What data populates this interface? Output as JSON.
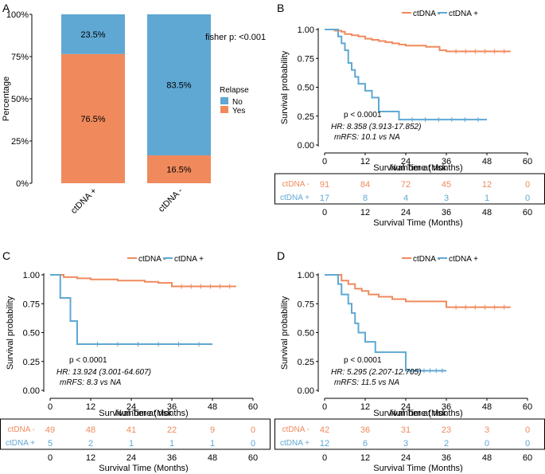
{
  "colors": {
    "no": "#5FA8D3",
    "yes": "#F08A5D",
    "neg": "#F08A5D",
    "pos": "#5FA8D3",
    "axis": "#000000"
  },
  "panelA": {
    "letter": "A",
    "ylabel": "Percentage",
    "yticks": [
      "0%",
      "25%",
      "50%",
      "75%",
      "100%"
    ],
    "categories": [
      "ctDNA +",
      "ctDNA -"
    ],
    "fisher": "fisher p: <0.001",
    "legend": {
      "title": "Relapse",
      "no": "No",
      "yes": "Yes"
    },
    "chart_data": {
      "type": "bar",
      "stacked": true,
      "categories": [
        "ctDNA +",
        "ctDNA -"
      ],
      "series": [
        {
          "name": "Yes",
          "values": [
            76.5,
            16.5
          ],
          "labels": [
            "76.5%",
            "16.5%"
          ]
        },
        {
          "name": "No",
          "values": [
            23.5,
            83.5
          ],
          "labels": [
            "23.5%",
            "83.5%"
          ]
        }
      ],
      "ylim": [
        0,
        100
      ]
    }
  },
  "km": [
    {
      "letter": "B",
      "legend": {
        "neg": "ctDNA -",
        "pos": "ctDNA +"
      },
      "ylabel": "Survival probability",
      "xlabel": "Survival Time (Months)",
      "risk_title": "Number at risk",
      "risk_xlabel": "Survival Time (Months)",
      "stats": {
        "p": "p < 0.0001",
        "hr": "HR: 8.358 (3.913-17.852)",
        "mrfs": "mRFS: 10.1 vs NA"
      },
      "yticks": [
        "0.00",
        "0.25",
        "0.50",
        "0.75",
        "1.00"
      ],
      "xticks": [
        "0",
        "12",
        "24",
        "36",
        "48",
        "60"
      ],
      "risk": {
        "labels": [
          "ctDNA -",
          "ctDNA +"
        ],
        "neg": [
          "91",
          "84",
          "72",
          "45",
          "12",
          "0"
        ],
        "pos": [
          "17",
          "8",
          "4",
          "3",
          "1",
          "0"
        ]
      },
      "chart_data": {
        "type": "line",
        "step": true,
        "xlim": [
          0,
          60
        ],
        "ylim": [
          0,
          1
        ],
        "series": [
          {
            "name": "ctDNA -",
            "x": [
              0,
              3,
              5,
              6,
              8,
              10,
              12,
              14,
              16,
              18,
              20,
              22,
              24,
              30,
              34,
              36,
              55
            ],
            "y": [
              1,
              0.99,
              0.98,
              0.96,
              0.95,
              0.94,
              0.92,
              0.91,
              0.9,
              0.89,
              0.88,
              0.87,
              0.86,
              0.85,
              0.82,
              0.81,
              0.81
            ]
          },
          {
            "name": "ctDNA +",
            "x": [
              0,
              4,
              5,
              6,
              7,
              8,
              9,
              10,
              12,
              14,
              16,
              22,
              48
            ],
            "y": [
              1,
              0.94,
              0.88,
              0.82,
              0.71,
              0.65,
              0.59,
              0.53,
              0.47,
              0.41,
              0.29,
              0.22,
              0.22
            ]
          }
        ]
      }
    },
    {
      "letter": "C",
      "legend": {
        "neg": "ctDNA -",
        "pos": "ctDNA +"
      },
      "ylabel": "Survival probability",
      "xlabel": "Survival Time (Months)",
      "risk_title": "Number at risk",
      "risk_xlabel": "Survival Time (Months)",
      "stats": {
        "p": "p < 0.0001",
        "hr": "HR: 13.924 (3.001-64.607)",
        "mrfs": "mRFS: 8.3 vs NA"
      },
      "yticks": [
        "0.00",
        "0.25",
        "0.50",
        "0.75",
        "1.00"
      ],
      "xticks": [
        "0",
        "12",
        "24",
        "36",
        "48",
        "60"
      ],
      "risk": {
        "labels": [
          "ctDNA -",
          "ctDNA +"
        ],
        "neg": [
          "49",
          "48",
          "41",
          "22",
          "9",
          "0"
        ],
        "pos": [
          "5",
          "2",
          "1",
          "1",
          "1",
          "0"
        ]
      },
      "chart_data": {
        "type": "line",
        "step": true,
        "xlim": [
          0,
          60
        ],
        "ylim": [
          0,
          1
        ],
        "series": [
          {
            "name": "ctDNA -",
            "x": [
              0,
              4,
              8,
              12,
              20,
              28,
              32,
              36,
              55
            ],
            "y": [
              1,
              0.98,
              0.97,
              0.96,
              0.95,
              0.94,
              0.93,
              0.9,
              0.9
            ]
          },
          {
            "name": "ctDNA +",
            "x": [
              0,
              3,
              6,
              8,
              48
            ],
            "y": [
              1,
              0.8,
              0.6,
              0.4,
              0.4
            ]
          }
        ]
      }
    },
    {
      "letter": "D",
      "legend": {
        "neg": "ctDNA -",
        "pos": "ctDNA +"
      },
      "ylabel": "Survival probability",
      "xlabel": "Survival Time (Months)",
      "risk_title": "Number at risk",
      "risk_xlabel": "Survival Time (Months)",
      "stats": {
        "p": "p < 0.0001",
        "hr": "HR: 5.295 (2.207-12.705)",
        "mrfs": "mRFS: 11.5 vs NA"
      },
      "yticks": [
        "0.00",
        "0.25",
        "0.50",
        "0.75",
        "1.00"
      ],
      "xticks": [
        "0",
        "12",
        "24",
        "36",
        "48",
        "60"
      ],
      "risk": {
        "labels": [
          "ctDNA -",
          "ctDNA +"
        ],
        "neg": [
          "42",
          "36",
          "31",
          "23",
          "3",
          "0"
        ],
        "pos": [
          "12",
          "6",
          "3",
          "2",
          "0",
          "0"
        ]
      },
      "chart_data": {
        "type": "line",
        "step": true,
        "xlim": [
          0,
          60
        ],
        "ylim": [
          0,
          1
        ],
        "series": [
          {
            "name": "ctDNA -",
            "x": [
              0,
              5,
              7,
              9,
              11,
              13,
              16,
              20,
              24,
              36,
              55
            ],
            "y": [
              1,
              0.95,
              0.92,
              0.88,
              0.86,
              0.83,
              0.81,
              0.79,
              0.77,
              0.72,
              0.72
            ]
          },
          {
            "name": "ctDNA +",
            "x": [
              0,
              4,
              5,
              7,
              8,
              9,
              10,
              12,
              15,
              24,
              36
            ],
            "y": [
              1,
              0.92,
              0.83,
              0.75,
              0.67,
              0.58,
              0.5,
              0.42,
              0.33,
              0.17,
              0.17
            ]
          }
        ]
      }
    }
  ]
}
